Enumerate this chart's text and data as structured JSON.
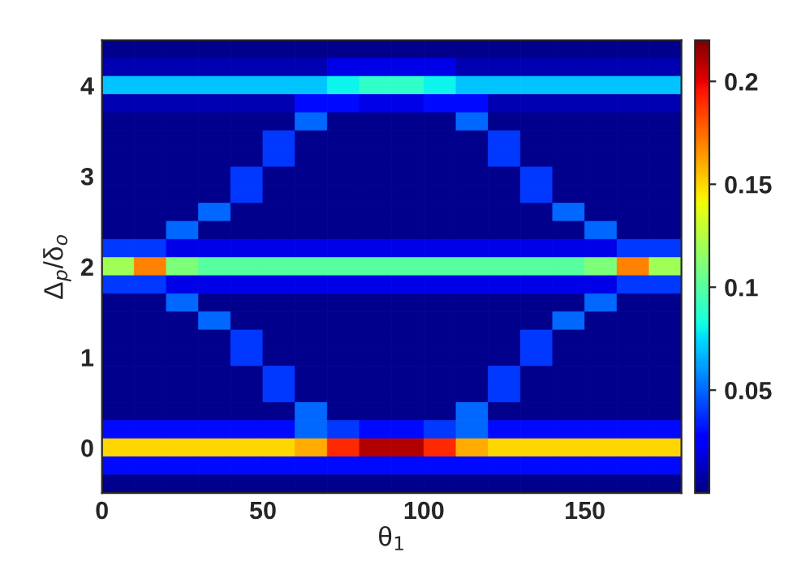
{
  "chart_data": {
    "type": "heatmap",
    "xlabel": "θ$_{1}$",
    "ylabel": "Δ$_{p}$/δ$_{o}$",
    "x": [
      5,
      15,
      25,
      35,
      45,
      55,
      65,
      75,
      85,
      95,
      105,
      115,
      125,
      135,
      145,
      155,
      165,
      175
    ],
    "xlim": [
      0,
      180
    ],
    "xticks": [
      0,
      50,
      100,
      150
    ],
    "ylim": [
      -0.5,
      4.5
    ],
    "yticks": [
      0,
      1,
      2,
      3,
      4
    ],
    "clim": [
      0,
      0.22
    ],
    "cticks": [
      0.05,
      0.1,
      0.15,
      0.2
    ],
    "cells": [
      [
        0.003,
        0.003,
        0.003,
        0.003,
        0.003,
        0.003,
        0.003,
        0.003,
        0.003,
        0.003,
        0.003,
        0.003,
        0.003,
        0.003,
        0.003,
        0.003,
        0.003,
        0.003
      ],
      [
        0.01,
        0.01,
        0.01,
        0.01,
        0.01,
        0.01,
        0.01,
        0.02,
        0.02,
        0.02,
        0.02,
        0.01,
        0.01,
        0.01,
        0.01,
        0.01,
        0.01,
        0.01
      ],
      [
        0.07,
        0.07,
        0.07,
        0.07,
        0.07,
        0.07,
        0.07,
        0.08,
        0.09,
        0.09,
        0.08,
        0.07,
        0.07,
        0.07,
        0.07,
        0.07,
        0.07,
        0.07
      ],
      [
        0.01,
        0.01,
        0.01,
        0.01,
        0.01,
        0.01,
        0.03,
        0.03,
        0.02,
        0.02,
        0.03,
        0.03,
        0.01,
        0.01,
        0.01,
        0.01,
        0.01,
        0.01
      ],
      [
        0.003,
        0.003,
        0.003,
        0.003,
        0.003,
        0.003,
        0.05,
        0.003,
        0.003,
        0.003,
        0.003,
        0.05,
        0.003,
        0.003,
        0.003,
        0.003,
        0.003,
        0.003
      ],
      [
        0.003,
        0.003,
        0.003,
        0.003,
        0.003,
        0.04,
        0.003,
        0.003,
        0.003,
        0.003,
        0.003,
        0.003,
        0.04,
        0.003,
        0.003,
        0.003,
        0.003,
        0.003
      ],
      [
        0.003,
        0.003,
        0.003,
        0.003,
        0.003,
        0.04,
        0.003,
        0.003,
        0.003,
        0.003,
        0.003,
        0.003,
        0.04,
        0.003,
        0.003,
        0.003,
        0.003,
        0.003
      ],
      [
        0.003,
        0.003,
        0.003,
        0.003,
        0.04,
        0.003,
        0.003,
        0.003,
        0.003,
        0.003,
        0.003,
        0.003,
        0.003,
        0.04,
        0.003,
        0.003,
        0.003,
        0.003
      ],
      [
        0.003,
        0.003,
        0.003,
        0.003,
        0.04,
        0.003,
        0.003,
        0.003,
        0.003,
        0.003,
        0.003,
        0.003,
        0.003,
        0.04,
        0.003,
        0.003,
        0.003,
        0.003
      ],
      [
        0.003,
        0.003,
        0.003,
        0.05,
        0.003,
        0.003,
        0.003,
        0.003,
        0.003,
        0.003,
        0.003,
        0.003,
        0.003,
        0.003,
        0.05,
        0.003,
        0.003,
        0.003
      ],
      [
        0.003,
        0.003,
        0.05,
        0.003,
        0.003,
        0.003,
        0.003,
        0.003,
        0.003,
        0.003,
        0.003,
        0.003,
        0.003,
        0.003,
        0.003,
        0.05,
        0.003,
        0.003
      ],
      [
        0.04,
        0.04,
        0.02,
        0.02,
        0.02,
        0.02,
        0.02,
        0.02,
        0.02,
        0.02,
        0.02,
        0.02,
        0.02,
        0.02,
        0.02,
        0.02,
        0.04,
        0.04
      ],
      [
        0.12,
        0.17,
        0.11,
        0.1,
        0.1,
        0.1,
        0.1,
        0.1,
        0.1,
        0.1,
        0.1,
        0.1,
        0.1,
        0.1,
        0.1,
        0.11,
        0.17,
        0.12
      ],
      [
        0.04,
        0.04,
        0.02,
        0.02,
        0.02,
        0.02,
        0.02,
        0.02,
        0.02,
        0.02,
        0.02,
        0.02,
        0.02,
        0.02,
        0.02,
        0.02,
        0.04,
        0.04
      ],
      [
        0.003,
        0.003,
        0.05,
        0.003,
        0.003,
        0.003,
        0.003,
        0.003,
        0.003,
        0.003,
        0.003,
        0.003,
        0.003,
        0.003,
        0.003,
        0.05,
        0.003,
        0.003
      ],
      [
        0.003,
        0.003,
        0.003,
        0.05,
        0.003,
        0.003,
        0.003,
        0.003,
        0.003,
        0.003,
        0.003,
        0.003,
        0.003,
        0.003,
        0.05,
        0.003,
        0.003,
        0.003
      ],
      [
        0.003,
        0.003,
        0.003,
        0.003,
        0.04,
        0.003,
        0.003,
        0.003,
        0.003,
        0.003,
        0.003,
        0.003,
        0.003,
        0.04,
        0.003,
        0.003,
        0.003,
        0.003
      ],
      [
        0.003,
        0.003,
        0.003,
        0.003,
        0.04,
        0.003,
        0.003,
        0.003,
        0.003,
        0.003,
        0.003,
        0.003,
        0.003,
        0.04,
        0.003,
        0.003,
        0.003,
        0.003
      ],
      [
        0.003,
        0.003,
        0.003,
        0.003,
        0.003,
        0.04,
        0.003,
        0.003,
        0.003,
        0.003,
        0.003,
        0.003,
        0.04,
        0.003,
        0.003,
        0.003,
        0.003,
        0.003
      ],
      [
        0.003,
        0.003,
        0.003,
        0.003,
        0.003,
        0.04,
        0.003,
        0.003,
        0.003,
        0.003,
        0.003,
        0.003,
        0.04,
        0.003,
        0.003,
        0.003,
        0.003,
        0.003
      ],
      [
        0.003,
        0.003,
        0.003,
        0.003,
        0.003,
        0.003,
        0.05,
        0.003,
        0.003,
        0.003,
        0.003,
        0.05,
        0.003,
        0.003,
        0.003,
        0.003,
        0.003,
        0.003
      ],
      [
        0.03,
        0.03,
        0.03,
        0.03,
        0.03,
        0.03,
        0.05,
        0.04,
        0.03,
        0.03,
        0.04,
        0.05,
        0.03,
        0.03,
        0.03,
        0.03,
        0.03,
        0.03
      ],
      [
        0.15,
        0.15,
        0.15,
        0.15,
        0.15,
        0.15,
        0.16,
        0.19,
        0.21,
        0.21,
        0.19,
        0.16,
        0.15,
        0.15,
        0.15,
        0.15,
        0.15,
        0.15
      ],
      [
        0.03,
        0.03,
        0.03,
        0.03,
        0.03,
        0.03,
        0.03,
        0.03,
        0.03,
        0.03,
        0.03,
        0.03,
        0.03,
        0.03,
        0.03,
        0.03,
        0.03,
        0.03
      ],
      [
        0.003,
        0.003,
        0.003,
        0.003,
        0.003,
        0.003,
        0.003,
        0.003,
        0.003,
        0.003,
        0.003,
        0.003,
        0.003,
        0.003,
        0.003,
        0.003,
        0.003,
        0.003
      ]
    ]
  }
}
